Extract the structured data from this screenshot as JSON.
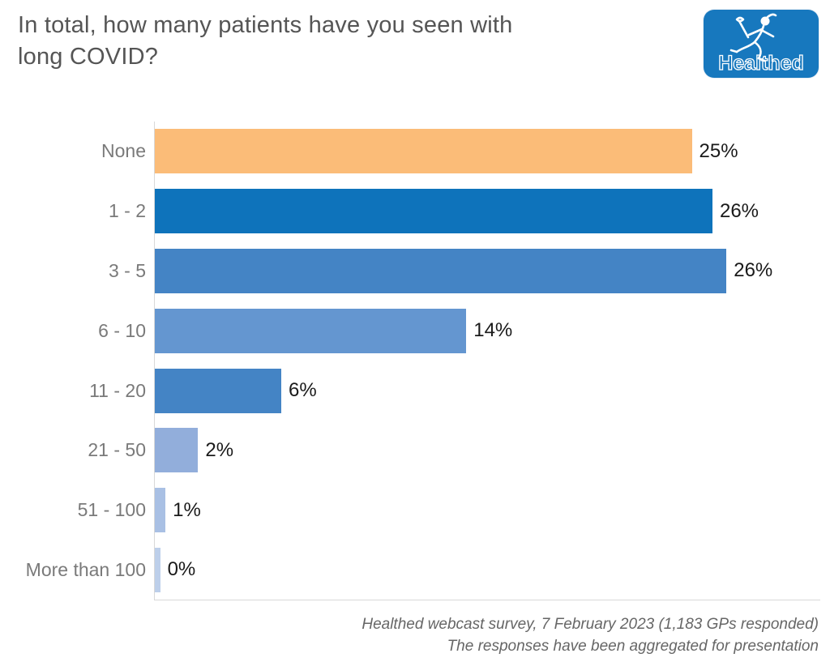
{
  "header": {
    "title_lines": [
      "In total, how many patients have you seen with",
      "long COVID?"
    ],
    "logo": {
      "brand": "Healthed",
      "icon": "hermes-runner-icon",
      "bg_color": "#1778BE"
    }
  },
  "chart_data": {
    "type": "bar",
    "orientation": "horizontal",
    "title": "In total, how many patients have you seen with long COVID?",
    "categories": [
      "None",
      "1 - 2",
      "3 - 5",
      "6 - 10",
      "11 - 20",
      "21 - 50",
      "51 - 100",
      "More than 100"
    ],
    "values": [
      25,
      26,
      26,
      14,
      6,
      2,
      1,
      0
    ],
    "value_labels": [
      "25%",
      "26%",
      "26%",
      "14%",
      "6%",
      "2%",
      "1%",
      "0%"
    ],
    "bar_fractions": [
      0.807,
      0.838,
      0.859,
      0.468,
      0.19,
      0.065,
      0.016,
      0.008
    ],
    "bar_colors": [
      "#FBBC78",
      "#0E73BB",
      "#4484C5",
      "#6496D0",
      "#4484C5",
      "#92AEDB",
      "#A9C0E4",
      "#BDCFEA"
    ],
    "xlabel": "",
    "ylabel": "",
    "xlim": [
      0,
      27
    ],
    "grid": false,
    "legend": null,
    "data_labels": "outside-end"
  },
  "footer": {
    "line1": "Healthed webcast survey, 7 February 2023 (1,183 GPs responded)",
    "line2": "The responses have been aggregated for presentation"
  },
  "colors": {
    "title_text": "#555555",
    "category_text": "#7a7a7a",
    "value_text": "#1a1a1a",
    "axis_line": "#d8d8d8",
    "footer_text": "#666666",
    "logo_blue": "#1778BE",
    "background": "#ffffff"
  }
}
